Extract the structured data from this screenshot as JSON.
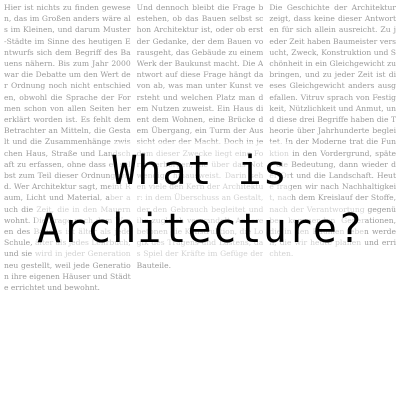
{
  "title": {
    "line1": "What is",
    "line2": "Architecture?"
  },
  "background_text": {
    "columns": [
      "Hier ist nichts zu finden gewesen, das im Großen anders wäre als im Kleinen, und darum Muster-Städte im Sinne des heutigen Entwurfs sich dem Begriff des Bauens nähern. Bis zum Jahr 2000 war die Debatte um den Wert der Ordnung noch nicht entschieden, obwohl die Sprache der Formen schon von allen Seiten her erklärt worden ist. Es fehlt dem Betrachter an Mitteln, die Gestalt und die Zusammenhänge zwischen Haus, Straße und Landschaft zu erfassen, ohne dass er selbst zum Teil dieser Ordnung wird. Wer Architektur sagt, meint Raum, Licht und Material, aber auch die Zeit, die in den Mauern wohnt. Die Frage nach dem Wesen des Bauens ist älter als jede Schule, älter als jedes Lehrbuch, und sie wird in jeder Generation neu gestellt, weil jede Generation ihre eigenen Häuser und Städte errichtet und bewohnt.",
      "Und dennoch bleibt die Frage bestehen, ob das Bauen selbst schon Architektur ist, oder ob erst der Gedanke, der dem Bauen vorausgeht, das Gebäude zu einem Werk der Baukunst macht. Die Antwort auf diese Frage hängt davon ab, was man unter Kunst versteht und welchen Platz man dem Nutzen zuweist. Ein Haus dient dem Wohnen, eine Brücke dem Übergang, ein Turm der Aussicht oder der Macht. Doch in jedem dieser Zwecke liegt eine Form verborgen, die über das Notwendige hinausweist. Darin sehen viele den Kern der Architektur: in dem Überschuss an Gestalt, der den Gebrauch begleitet und ihn zugleich verwandelt. Andere betonen die Konstruktion, die Logik des Tragens und Lastens, das Spiel der Kräfte im Gefüge der Bauteile.",
      "Die Geschichte der Architektur zeigt, dass keine dieser Antworten für sich allein ausreicht. Zu jeder Zeit haben Baumeister versucht, Zweck, Konstruktion und Schönheit in ein Gleichgewicht zu bringen, und zu jeder Zeit ist dieses Gleichgewicht anders ausgefallen. Vitruv sprach von Festigkeit, Nützlichkeit und Anmut, und diese drei Begriffe haben die Theorie über Jahrhunderte begleitet. In der Moderne trat die Funktion in den Vordergrund, später die Bedeutung, dann wieder der Ort und die Landschaft. Heute fragen wir nach Nachhaltigkeit, nach dem Kreislauf der Stoffe, nach der Verantwortung gegenüber kommenden Generationen, die in den Räumen leben werden, die wir heute planen und errichten."
    ]
  }
}
